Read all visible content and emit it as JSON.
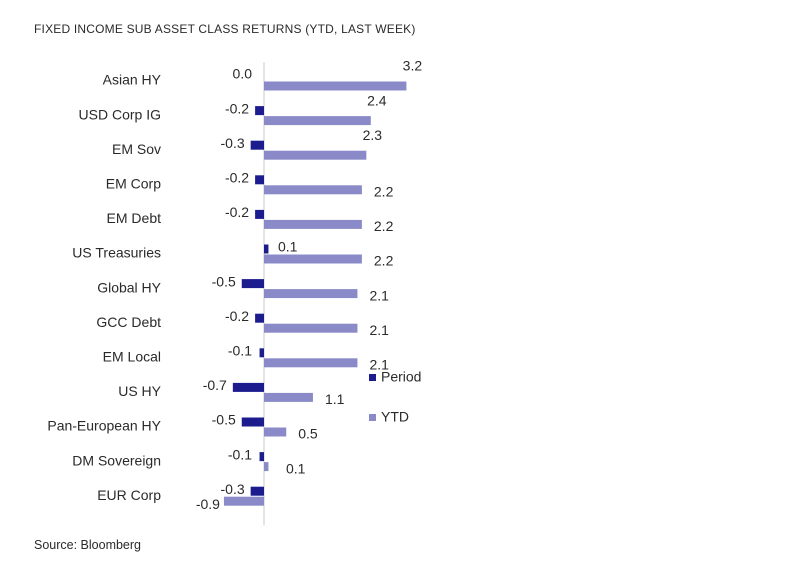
{
  "title": "FIXED INCOME SUB ASSET CLASS RETURNS (YTD, LAST WEEK)",
  "source": "Source: Bloomberg",
  "colors": {
    "period": "#1c1c8f",
    "ytd": "#8a8ac8",
    "axis": "#c8c8c8",
    "text": "#2a2a2a"
  },
  "chart_data": {
    "type": "bar",
    "orientation": "horizontal",
    "categories": [
      "Asian HY",
      "USD Corp IG",
      "EM Sov",
      "EM Corp",
      "EM Debt",
      "US Treasuries",
      "Global HY",
      "GCC Debt",
      "EM Local",
      "US HY",
      "Pan-European HY",
      "DM Sovereign",
      "EUR Corp"
    ],
    "series": [
      {
        "name": "Period",
        "values": [
          0.0,
          -0.2,
          -0.3,
          -0.2,
          -0.2,
          0.1,
          -0.5,
          -0.2,
          -0.1,
          -0.7,
          -0.5,
          -0.1,
          -0.3
        ]
      },
      {
        "name": "YTD",
        "values": [
          3.2,
          2.4,
          2.3,
          2.2,
          2.2,
          2.2,
          2.1,
          2.1,
          2.1,
          1.1,
          0.5,
          0.1,
          -0.9
        ]
      }
    ],
    "period_labels": [
      "0.0",
      "-0.2",
      "-0.3",
      "-0.2",
      "-0.2",
      "0.1",
      "-0.5",
      "-0.2",
      "-0.1",
      "-0.7",
      "-0.5",
      "-0.1",
      "-0.3"
    ],
    "ytd_labels": [
      "3.2",
      "2.4",
      "2.3",
      "2.2",
      "2.2",
      "2.2",
      "2.1",
      "2.1",
      "2.1",
      "1.1",
      "0.5",
      "0.1",
      "-0.9"
    ],
    "legend": [
      "Period",
      "YTD"
    ],
    "legend_position": "right",
    "grid": false
  }
}
